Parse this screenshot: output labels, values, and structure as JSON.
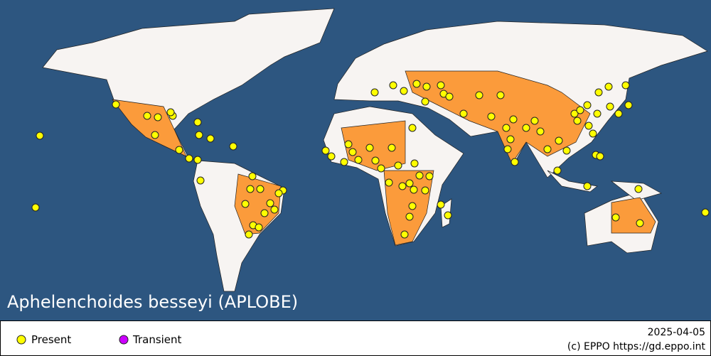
{
  "title": "Aphelenchoides besseyi (APLOBE)",
  "legend": [
    {
      "label": "Present",
      "color": "#ffff00"
    },
    {
      "label": "Transient",
      "color": "#cc00ff"
    }
  ],
  "date": "2025-04-05",
  "credit": "(c) EPPO https://gd.eppo.int"
}
